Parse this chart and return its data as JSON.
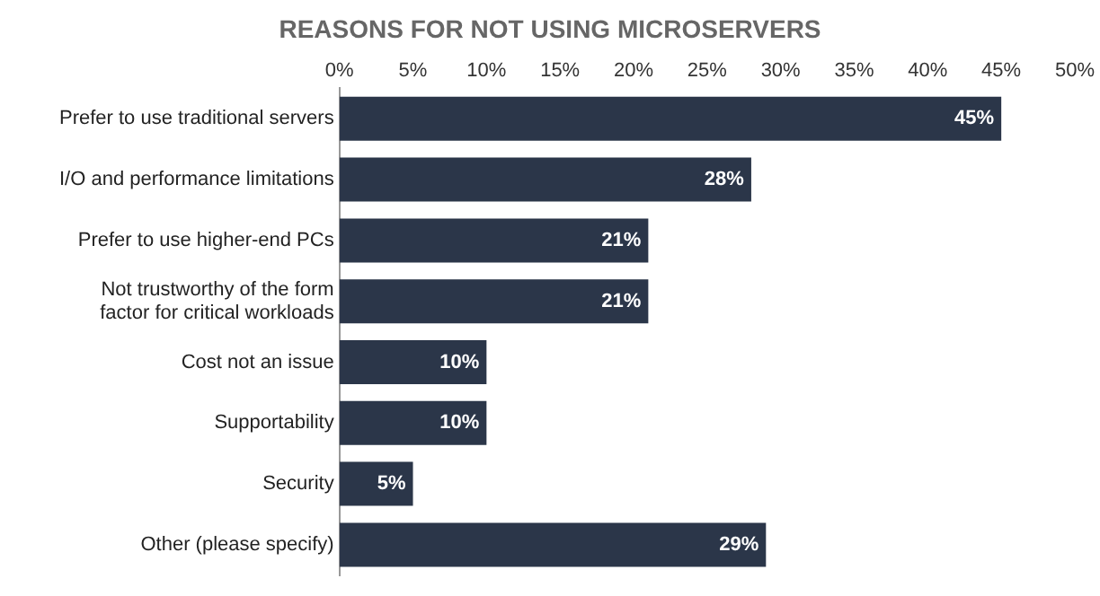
{
  "chart_data": {
    "type": "bar",
    "orientation": "horizontal",
    "title": "REASONS FOR NOT USING MICROSERVERS",
    "categories": [
      "Prefer to use traditional servers",
      "I/O and performance limitations",
      "Prefer to use higher-end PCs",
      "Not trustworthy of the form\nfactor for critical workloads",
      "Cost not an issue",
      "Supportability",
      "Security",
      "Other (please specify)"
    ],
    "values": [
      45,
      28,
      21,
      21,
      10,
      10,
      5,
      29
    ],
    "value_labels": [
      "45%",
      "28%",
      "21%",
      "21%",
      "10%",
      "10%",
      "5%",
      "29%"
    ],
    "color": "#2b3649",
    "xlim": [
      0,
      50
    ],
    "xticks": [
      {
        "value": 0,
        "label": "0%"
      },
      {
        "value": 5,
        "label": "5%"
      },
      {
        "value": 10,
        "label": "10%"
      },
      {
        "value": 15,
        "label": "15%"
      },
      {
        "value": 20,
        "label": "20%"
      },
      {
        "value": 25,
        "label": "25%"
      },
      {
        "value": 30,
        "label": "30%"
      },
      {
        "value": 35,
        "label": "35%"
      },
      {
        "value": 40,
        "label": "40%"
      },
      {
        "value": 45,
        "label": "45%"
      },
      {
        "value": 50,
        "label": "50%"
      }
    ],
    "grid": false,
    "legend": false
  }
}
